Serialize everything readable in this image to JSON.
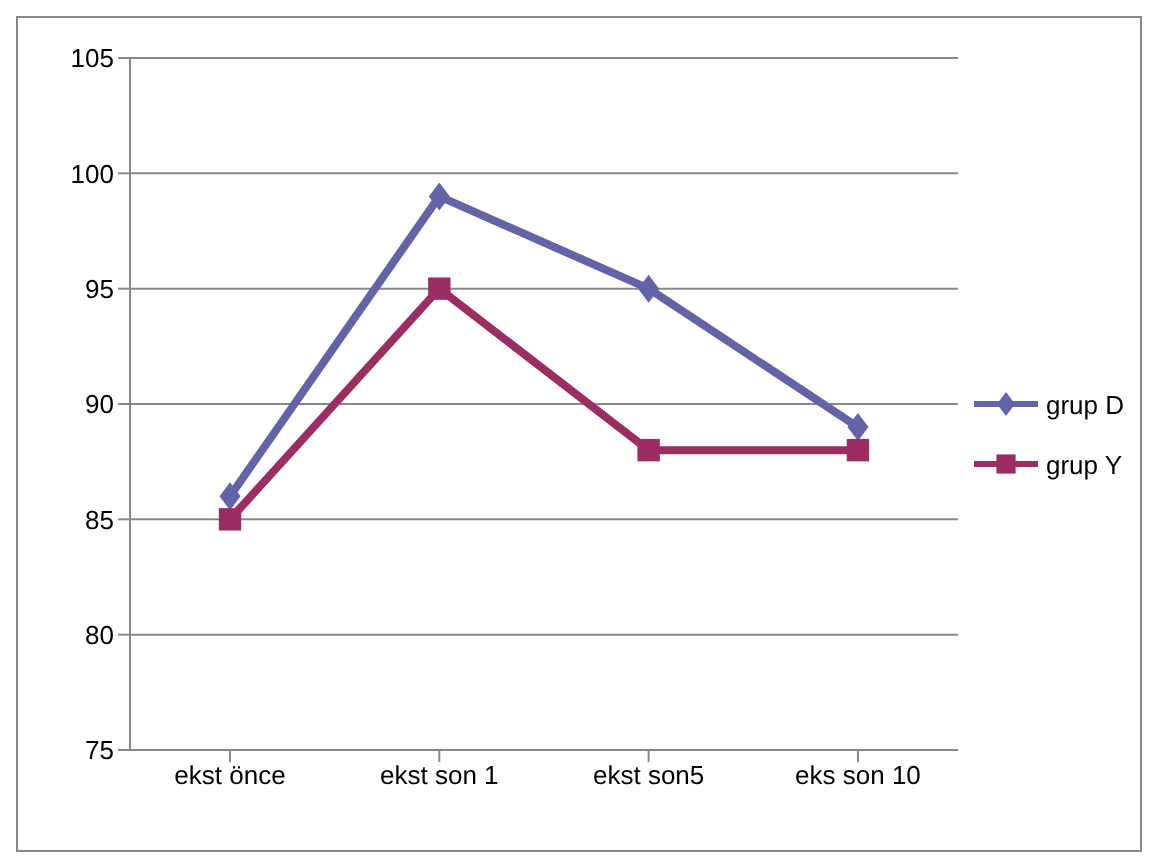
{
  "chart_data": {
    "type": "line",
    "categories": [
      "ekst önce",
      "ekst son 1",
      "ekst son5",
      "eks son 10"
    ],
    "series": [
      {
        "name": "grup D",
        "color": "#6264a7",
        "marker": "diamond",
        "values": [
          86,
          99,
          95,
          89
        ]
      },
      {
        "name": "grup Y",
        "color": "#9b2d63",
        "marker": "square",
        "values": [
          85,
          95,
          88,
          88
        ]
      }
    ],
    "ylim": [
      75,
      105
    ],
    "yticks": [
      75,
      80,
      85,
      90,
      95,
      100,
      105
    ],
    "grid": "y",
    "legend": "right",
    "line_style": "solid"
  }
}
